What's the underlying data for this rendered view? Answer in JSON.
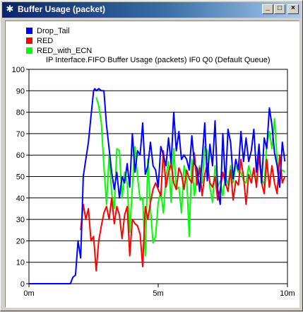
{
  "window": {
    "title": "Buffer Usage (packet)",
    "app_icon": "asterisk-icon",
    "buttons": {
      "minimize": "_",
      "maximize": "□",
      "close": "×"
    }
  },
  "chart_data": {
    "type": "line",
    "title": "IP Interface.FIFO Buffer Usage (packets) IF0 Q0 (Default Queue)",
    "xlabel": "",
    "ylabel": "",
    "xlim": [
      0,
      10
    ],
    "ylim": [
      0,
      100
    ],
    "x_ticks": [
      {
        "value": 0,
        "label": "0m"
      },
      {
        "value": 5,
        "label": "5m"
      },
      {
        "value": 10,
        "label": "10m"
      }
    ],
    "y_ticks": [
      0,
      10,
      20,
      30,
      40,
      50,
      60,
      70,
      80,
      90,
      100
    ],
    "grid": "horizontal",
    "legend_position": "top-left",
    "series": [
      {
        "name": "Drop_Tail",
        "color": "#0000ff",
        "x": [
          0,
          1.6,
          1.7,
          1.8,
          1.9,
          2.0,
          2.05,
          2.1,
          2.2,
          2.3,
          2.4,
          2.5,
          2.55,
          2.6,
          2.7,
          2.8,
          2.9,
          3.0,
          3.1,
          3.2,
          3.3,
          3.4,
          3.5,
          3.6,
          3.7,
          3.8,
          3.9,
          4.0,
          4.1,
          4.2,
          4.3,
          4.4,
          4.5,
          4.6,
          4.7,
          4.8,
          4.9,
          5.0,
          5.1,
          5.2,
          5.3,
          5.4,
          5.5,
          5.6,
          5.7,
          5.8,
          5.9,
          6.0,
          6.1,
          6.2,
          6.3,
          6.4,
          6.5,
          6.6,
          6.7,
          6.8,
          6.9,
          7.0,
          7.1,
          7.2,
          7.3,
          7.4,
          7.5,
          7.6,
          7.7,
          7.8,
          7.9,
          8.0,
          8.1,
          8.2,
          8.3,
          8.4,
          8.5,
          8.6,
          8.7,
          8.8,
          8.9,
          9.0,
          9.1,
          9.2,
          9.3,
          9.4,
          9.5,
          9.6,
          9.7,
          9.8,
          9.9
        ],
        "values": [
          0,
          0,
          3,
          4,
          20,
          12,
          30,
          50,
          58,
          66,
          78,
          90,
          91,
          90,
          91,
          90,
          90,
          74,
          63,
          52,
          44,
          52,
          40,
          50,
          47,
          56,
          45,
          70,
          52,
          62,
          60,
          75,
          51,
          55,
          66,
          55,
          53,
          45,
          64,
          60,
          55,
          68,
          56,
          80,
          62,
          71,
          58,
          60,
          58,
          53,
          69,
          56,
          54,
          43,
          58,
          75,
          48,
          65,
          55,
          76,
          44,
          37,
          70,
          46,
          72,
          66,
          49,
          58,
          53,
          71,
          57,
          68,
          57,
          62,
          72,
          52,
          65,
          47,
          68,
          63,
          82,
          74,
          61,
          55,
          45,
          66,
          57
        ]
      },
      {
        "name": "RED",
        "color": "#ff0000",
        "x": [
          2.0,
          2.1,
          2.2,
          2.3,
          2.4,
          2.5,
          2.6,
          2.7,
          2.8,
          2.9,
          3.0,
          3.1,
          3.2,
          3.3,
          3.4,
          3.5,
          3.6,
          3.7,
          3.8,
          3.9,
          4.0,
          4.1,
          4.2,
          4.3,
          4.4,
          4.5,
          4.6,
          4.7,
          4.8,
          4.9,
          5.0,
          5.1,
          5.2,
          5.3,
          5.4,
          5.5,
          5.6,
          5.7,
          5.8,
          5.9,
          6.0,
          6.1,
          6.2,
          6.3,
          6.4,
          6.5,
          6.6,
          6.7,
          6.8,
          6.9,
          7.0,
          7.1,
          7.2,
          7.3,
          7.4,
          7.5,
          7.6,
          7.7,
          7.8,
          7.9,
          8.0,
          8.1,
          8.2,
          8.3,
          8.4,
          8.5,
          8.6,
          8.7,
          8.8,
          8.9,
          9.0,
          9.1,
          9.2,
          9.3,
          9.4,
          9.5,
          9.6,
          9.7,
          9.8,
          9.9
        ],
        "values": [
          25,
          37,
          30,
          35,
          20,
          22,
          6,
          20,
          27,
          33,
          36,
          30,
          40,
          28,
          36,
          32,
          21,
          32,
          36,
          13,
          30,
          28,
          27,
          23,
          8,
          36,
          30,
          38,
          44,
          47,
          44,
          41,
          62,
          45,
          52,
          56,
          47,
          44,
          54,
          51,
          44,
          53,
          49,
          47,
          61,
          46,
          54,
          41,
          51,
          56,
          47,
          45,
          50,
          39,
          44,
          52,
          47,
          43,
          53,
          39,
          48,
          46,
          58,
          50,
          37,
          51,
          47,
          54,
          45,
          60,
          47,
          42,
          58,
          45,
          55,
          47,
          42,
          60,
          47,
          50
        ]
      },
      {
        "name": "RED_with_ECN",
        "color": "#00ff00",
        "x": [
          2.6,
          2.7,
          2.8,
          2.9,
          3.0,
          3.1,
          3.2,
          3.3,
          3.4,
          3.5,
          3.6,
          3.7,
          3.8,
          3.9,
          4.0,
          4.1,
          4.2,
          4.3,
          4.4,
          4.5,
          4.6,
          4.7,
          4.8,
          4.9,
          5.0,
          5.1,
          5.2,
          5.3,
          5.4,
          5.5,
          5.6,
          5.7,
          5.8,
          5.9,
          6.0,
          6.1,
          6.2,
          6.3,
          6.4,
          6.5,
          6.6,
          6.7,
          6.8,
          6.9,
          7.0,
          7.1,
          7.2,
          7.3,
          7.4,
          7.5,
          7.6,
          7.7,
          7.8,
          7.9,
          8.0,
          8.1,
          8.2,
          8.3,
          8.4,
          8.5,
          8.6,
          8.7,
          8.8,
          8.9,
          9.0,
          9.1,
          9.2,
          9.3,
          9.4,
          9.5,
          9.6,
          9.7,
          9.8,
          9.9
        ],
        "values": [
          87,
          83,
          75,
          55,
          37,
          60,
          42,
          35,
          63,
          62,
          40,
          52,
          47,
          24,
          45,
          64,
          50,
          39,
          40,
          13,
          58,
          35,
          19,
          22,
          38,
          43,
          33,
          50,
          57,
          38,
          63,
          44,
          45,
          33,
          55,
          50,
          22,
          58,
          41,
          50,
          55,
          47,
          64,
          62,
          45,
          38,
          55,
          45,
          48,
          41,
          51,
          46,
          55,
          47,
          55,
          52,
          52,
          48,
          47,
          55,
          50,
          52,
          47,
          62,
          49,
          46,
          65,
          71,
          63,
          77,
          57,
          51,
          53,
          52
        ]
      }
    ]
  }
}
